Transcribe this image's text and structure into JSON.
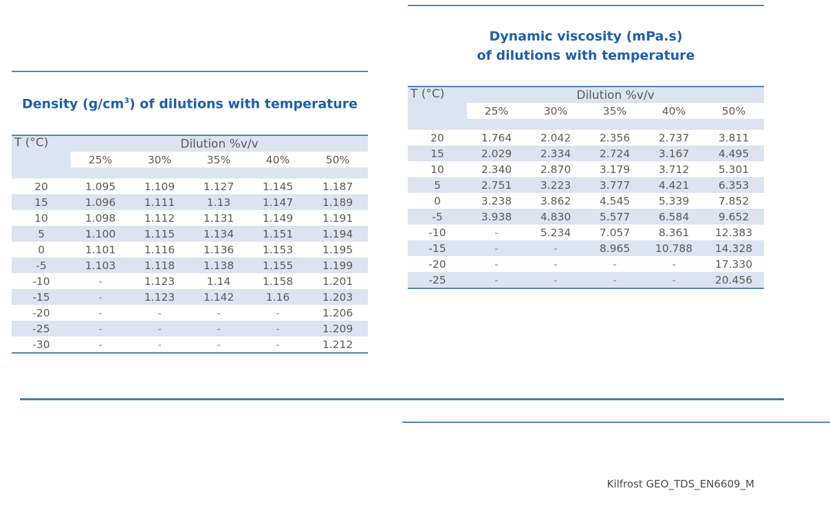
{
  "density": {
    "title_prefix": "Density (g/cm",
    "title_sup": "3",
    "title_suffix": ") of dilutions with temperature",
    "t_header": "T (°C)",
    "dilution_header": "Dilution %v/v",
    "columns": [
      "25%",
      "30%",
      "35%",
      "40%",
      "50%"
    ],
    "rows": [
      {
        "t": "20",
        "v": [
          "1.095",
          "1.109",
          "1.127",
          "1.145",
          "1.187"
        ]
      },
      {
        "t": "15",
        "v": [
          "1.096",
          "1.111",
          "1.13",
          "1.147",
          "1.189"
        ]
      },
      {
        "t": "10",
        "v": [
          "1.098",
          "1.112",
          "1.131",
          "1.149",
          "1.191"
        ]
      },
      {
        "t": "5",
        "v": [
          "1.100",
          "1.115",
          "1.134",
          "1.151",
          "1.194"
        ]
      },
      {
        "t": "0",
        "v": [
          "1.101",
          "1.116",
          "1.136",
          "1.153",
          "1.195"
        ]
      },
      {
        "t": "-5",
        "v": [
          "1.103",
          "1.118",
          "1.138",
          "1.155",
          "1.199"
        ]
      },
      {
        "t": "-10",
        "v": [
          "-",
          "1.123",
          "1.14",
          "1.158",
          "1.201"
        ]
      },
      {
        "t": "-15",
        "v": [
          "-",
          "1.123",
          "1.142",
          "1.16",
          "1.203"
        ]
      },
      {
        "t": "-20",
        "v": [
          "-",
          "-",
          "-",
          "-",
          "1.206"
        ]
      },
      {
        "t": "-25",
        "v": [
          "-",
          "-",
          "-",
          "-",
          "1.209"
        ]
      },
      {
        "t": "-30",
        "v": [
          "-",
          "-",
          "-",
          "-",
          "1.212"
        ]
      }
    ]
  },
  "viscosity": {
    "title_line1": "Dynamic viscosity (mPa.s)",
    "title_line2": "of dilutions with temperature",
    "t_header": "T (°C)",
    "dilution_header": "Dilution %v/v",
    "columns": [
      "25%",
      "30%",
      "35%",
      "40%",
      "50%"
    ],
    "rows": [
      {
        "t": "20",
        "v": [
          "1.764",
          "2.042",
          "2.356",
          "2.737",
          "3.811"
        ]
      },
      {
        "t": "15",
        "v": [
          "2.029",
          "2.334",
          "2.724",
          "3.167",
          "4.495"
        ]
      },
      {
        "t": "10",
        "v": [
          "2.340",
          "2.870",
          "3.179",
          "3.712",
          "5.301"
        ]
      },
      {
        "t": "5",
        "v": [
          "2.751",
          "3.223",
          "3.777",
          "4.421",
          "6.353"
        ]
      },
      {
        "t": "0",
        "v": [
          "3.238",
          "3.862",
          "4.545",
          "5.339",
          "7.852"
        ]
      },
      {
        "t": "-5",
        "v": [
          "3.938",
          "4.830",
          "5.577",
          "6.584",
          "9.652"
        ]
      },
      {
        "t": "-10",
        "v": [
          "-",
          "5.234",
          "7.057",
          "8.361",
          "12.383"
        ]
      },
      {
        "t": "-15",
        "v": [
          "-",
          "-",
          "8.965",
          "10.788",
          "14.328"
        ]
      },
      {
        "t": "-20",
        "v": [
          "-",
          "-",
          "-",
          "-",
          "17.330"
        ]
      },
      {
        "t": "-25",
        "v": [
          "-",
          "-",
          "-",
          "-",
          "20.456"
        ]
      }
    ]
  },
  "footer": {
    "doc_code": "Kilfrost GEO_TDS_EN6609_M"
  },
  "colors": {
    "accent": "#1f5fa8",
    "rule": "#4f81bd",
    "band": "#dbe4f1"
  }
}
